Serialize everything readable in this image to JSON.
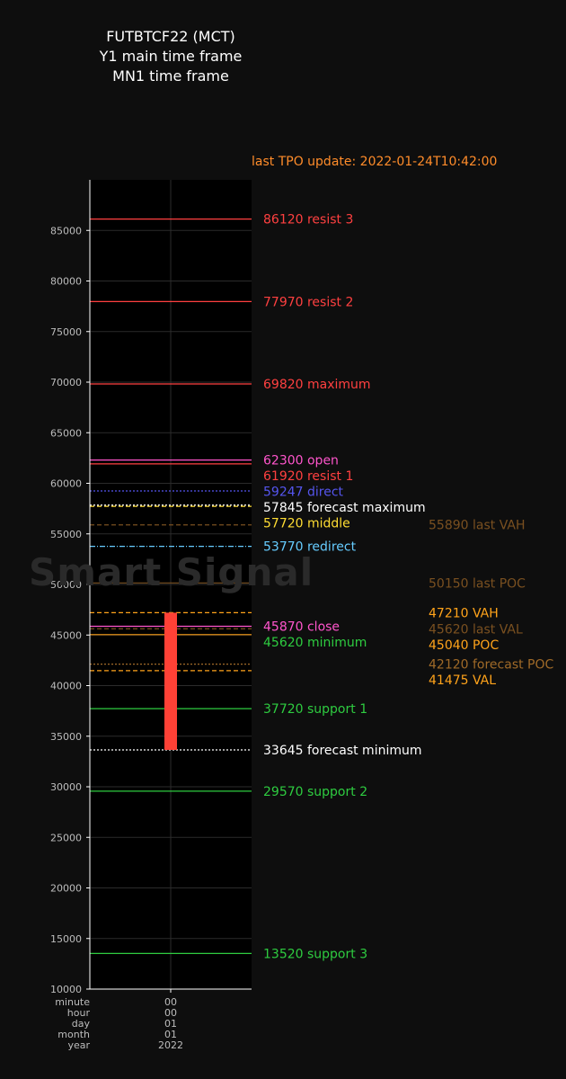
{
  "header": {
    "title_lines": [
      "FUTBTCF22 (MCT)",
      "Y1 main time frame",
      "MN1 time frame"
    ],
    "update_text": "last TPO update: 2022-01-24T10:42:00",
    "watermark": "Smart Signal"
  },
  "colors": {
    "background": "#0e0e0e",
    "plot_background": "#000000",
    "candle": "#ff4136",
    "resist": "#ff4040",
    "support": "#2ecc40",
    "open_close": "#ff55cc",
    "direct": "#5555ee",
    "redirect": "#66ccff",
    "forecast": "#ffffff",
    "middle": "#ffdd33",
    "profile": "#ffa31a",
    "last_profile": "#7a5020"
  },
  "x_axis": {
    "captions": [
      "minute",
      "hour",
      "day",
      "month",
      "year"
    ],
    "values": [
      "00",
      "00",
      "01",
      "01",
      "2022"
    ]
  },
  "chart_data": {
    "type": "candlestick",
    "ylim": [
      10000,
      90000
    ],
    "yticks": [
      10000,
      15000,
      20000,
      25000,
      30000,
      35000,
      40000,
      45000,
      50000,
      55000,
      60000,
      65000,
      70000,
      75000,
      80000,
      85000
    ],
    "candle": {
      "x": "2022-01-01 00:00",
      "open": 47210,
      "close": 33645,
      "high": 47210,
      "low": 33645
    },
    "levels": [
      {
        "value": 86120,
        "label": "86120 resist 3",
        "color": "#ff4040",
        "style": "solid",
        "side": "right",
        "line": true
      },
      {
        "value": 77970,
        "label": "77970 resist 2",
        "color": "#ff4040",
        "style": "solid",
        "side": "right",
        "line": true
      },
      {
        "value": 69820,
        "label": "69820 maximum",
        "color": "#ff4040",
        "style": "solid",
        "side": "right",
        "line": true
      },
      {
        "value": 62300,
        "label": "62300 open",
        "color": "#ff55cc",
        "style": "solid",
        "side": "right",
        "line": true
      },
      {
        "value": 61920,
        "label": "61920 resist 1",
        "color": "#ff4040",
        "style": "solid",
        "side": "right",
        "line": true
      },
      {
        "value": 59247,
        "label": "59247 direct",
        "color": "#5555ee",
        "style": "dotted",
        "side": "right",
        "line": true
      },
      {
        "value": 57845,
        "label": "57845 forecast maximum",
        "color": "#ffffff",
        "style": "dotted",
        "side": "right",
        "line": true
      },
      {
        "value": 57720,
        "label": "57720 middle",
        "color": "#ffdd33",
        "style": "dashed",
        "side": "right",
        "line": true
      },
      {
        "value": 55890,
        "label": "55890 last VAH",
        "color": "#7a5020",
        "style": "dashed",
        "side": "far",
        "line": true
      },
      {
        "value": 53770,
        "label": "53770 redirect",
        "color": "#66ccff",
        "style": "dashdot",
        "side": "right",
        "line": true
      },
      {
        "value": 50150,
        "label": "50150 last POC",
        "color": "#7a5020",
        "style": "solid",
        "side": "far",
        "line": true
      },
      {
        "value": 47210,
        "label": "47210 VAH",
        "color": "#ffa31a",
        "style": "dashed",
        "side": "far",
        "line": true
      },
      {
        "value": 45870,
        "label": "45870 close",
        "color": "#ff55cc",
        "style": "solid",
        "side": "right",
        "line": true
      },
      {
        "value": 45620,
        "label": "45620 last VAL",
        "color": "#7a5020",
        "style": "dashed",
        "side": "far",
        "line": true
      },
      {
        "value": 45620,
        "label": "45620 minimum",
        "color": "#2ecc40",
        "style": "solid",
        "side": "right",
        "line": false
      },
      {
        "value": 45040,
        "label": "45040 POC",
        "color": "#ffa31a",
        "style": "solid",
        "side": "far",
        "line": true
      },
      {
        "value": 42120,
        "label": "42120 forecast POC",
        "color": "#a06a28",
        "style": "dotted",
        "side": "far",
        "line": true
      },
      {
        "value": 41475,
        "label": "41475 VAL",
        "color": "#ffa31a",
        "style": "dashed",
        "side": "far",
        "line": true
      },
      {
        "value": 37720,
        "label": "37720 support 1",
        "color": "#2ecc40",
        "style": "solid",
        "side": "right",
        "line": true
      },
      {
        "value": 33645,
        "label": "33645 forecast minimum",
        "color": "#ffffff",
        "style": "dotted",
        "side": "right",
        "line": true
      },
      {
        "value": 29570,
        "label": "29570 support 2",
        "color": "#2ecc40",
        "style": "solid",
        "side": "right",
        "line": true
      },
      {
        "value": 13520,
        "label": "13520 support 3",
        "color": "#2ecc40",
        "style": "solid",
        "side": "right",
        "line": true
      }
    ]
  }
}
